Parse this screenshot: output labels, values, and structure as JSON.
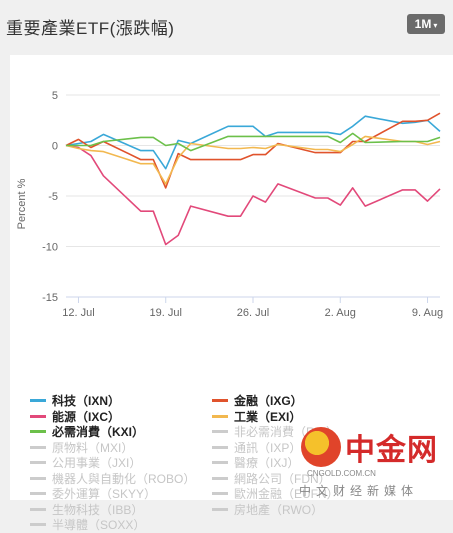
{
  "header": {
    "title": "重要產業ETF(漲跌幅)",
    "period": "1M",
    "caret": "▾"
  },
  "chart_data": {
    "type": "line",
    "ylabel": "Percent %",
    "ylim": [
      -15,
      5
    ],
    "yticks": [
      5,
      0,
      -5,
      -10,
      -15
    ],
    "x_range": [
      "2017-07-11",
      "2017-08-10"
    ],
    "x_tick_labels": [
      {
        "date": "2017-07-12",
        "label": "12. Jul"
      },
      {
        "date": "2017-07-19",
        "label": "19. Jul"
      },
      {
        "date": "2017-07-26",
        "label": "26. Jul"
      },
      {
        "date": "2017-08-02",
        "label": "2. Aug"
      },
      {
        "date": "2017-08-09",
        "label": "9. Aug"
      }
    ],
    "grid": true,
    "legend_position": "bottom",
    "dates": [
      "2017-07-11",
      "2017-07-12",
      "2017-07-13",
      "2017-07-14",
      "2017-07-17",
      "2017-07-18",
      "2017-07-19",
      "2017-07-20",
      "2017-07-21",
      "2017-07-24",
      "2017-07-25",
      "2017-07-26",
      "2017-07-27",
      "2017-07-28",
      "2017-07-31",
      "2017-08-01",
      "2017-08-02",
      "2017-08-03",
      "2017-08-04",
      "2017-08-07",
      "2017-08-08",
      "2017-08-09",
      "2017-08-10"
    ],
    "series": [
      {
        "name": "科技（IXN）",
        "color": "#3aa8d8",
        "values": [
          0,
          0.2,
          0.4,
          1.1,
          -0.5,
          -0.5,
          -2.3,
          0.5,
          0.2,
          1.9,
          1.9,
          1.9,
          0.9,
          1.3,
          1.3,
          1.3,
          1.1,
          1.9,
          2.9,
          2.2,
          2.3,
          2.5,
          1.4
        ]
      },
      {
        "name": "金融（IXG）",
        "color": "#e0532c",
        "values": [
          0,
          0.6,
          -0.2,
          0.4,
          -1.4,
          -1.4,
          -4.2,
          -0.8,
          -1.4,
          -1.4,
          -1.4,
          -0.9,
          -0.9,
          0.2,
          -0.7,
          -0.7,
          -0.7,
          0.4,
          0.4,
          2.4,
          2.4,
          2.5,
          3.2
        ]
      },
      {
        "name": "能源（IXC）",
        "color": "#e2497a",
        "values": [
          0,
          -0.2,
          -1.0,
          -3.0,
          -6.5,
          -6.5,
          -9.8,
          -8.9,
          -6.0,
          -7.0,
          -7.0,
          -5.0,
          -5.6,
          -3.8,
          -5.2,
          -5.2,
          -5.9,
          -4.2,
          -6.0,
          -4.4,
          -4.4,
          -5.5,
          -4.3
        ]
      },
      {
        "name": "工業（EXI）",
        "color": "#f2b84f",
        "values": [
          0,
          -0.3,
          -0.5,
          -0.6,
          -1.8,
          -1.8,
          -3.8,
          -1.2,
          0.2,
          -0.3,
          -0.3,
          -0.2,
          -0.3,
          0.1,
          -0.4,
          -0.4,
          -0.6,
          0.1,
          0.9,
          0.4,
          0.4,
          0.1,
          0.4
        ]
      },
      {
        "name": "必需消費（KXI）",
        "color": "#6cc04a",
        "values": [
          0,
          0.0,
          0.0,
          0.4,
          0.8,
          0.8,
          0.0,
          0.2,
          -0.5,
          0.9,
          0.9,
          0.9,
          0.9,
          0.9,
          0.9,
          0.9,
          0.3,
          1.2,
          0.3,
          0.4,
          0.4,
          0.4,
          0.8
        ]
      }
    ],
    "legend": [
      {
        "label": "科技（IXN）",
        "active": true,
        "color": "#3aa8d8"
      },
      {
        "label": "金融（IXG）",
        "active": true,
        "color": "#e0532c"
      },
      {
        "label": "能源（IXC）",
        "active": true,
        "color": "#e2497a"
      },
      {
        "label": "工業（EXI）",
        "active": true,
        "color": "#f2b84f"
      },
      {
        "label": "必需消費（KXI）",
        "active": true,
        "color": "#6cc04a"
      },
      {
        "label": "非必需消費（RXI）",
        "active": false,
        "color": "#cccccc"
      },
      {
        "label": "原物料（MXI）",
        "active": false,
        "color": "#cccccc"
      },
      {
        "label": "通訊（IXP）",
        "active": false,
        "color": "#cccccc"
      },
      {
        "label": "公用事業（JXI）",
        "active": false,
        "color": "#cccccc"
      },
      {
        "label": "醫療（IXJ）",
        "active": false,
        "color": "#cccccc"
      },
      {
        "label": "機器人與自動化（ROBO）",
        "active": false,
        "color": "#cccccc"
      },
      {
        "label": "網路公司（FDN）",
        "active": false,
        "color": "#cccccc"
      },
      {
        "label": "委外運算（SKYY）",
        "active": false,
        "color": "#cccccc"
      },
      {
        "label": "歐洲金融（EUFN）",
        "active": false,
        "color": "#cccccc"
      },
      {
        "label": "生物科技（IBB）",
        "active": false,
        "color": "#cccccc"
      },
      {
        "label": "房地產（RWO）",
        "active": false,
        "color": "#cccccc"
      },
      {
        "label": "半導體（SOXX）",
        "active": false,
        "color": "#cccccc"
      }
    ]
  },
  "watermark": {
    "brand": "中金网",
    "domain": "CNGOLD.COM.CN",
    "tagline": "中文财经新媒体"
  }
}
